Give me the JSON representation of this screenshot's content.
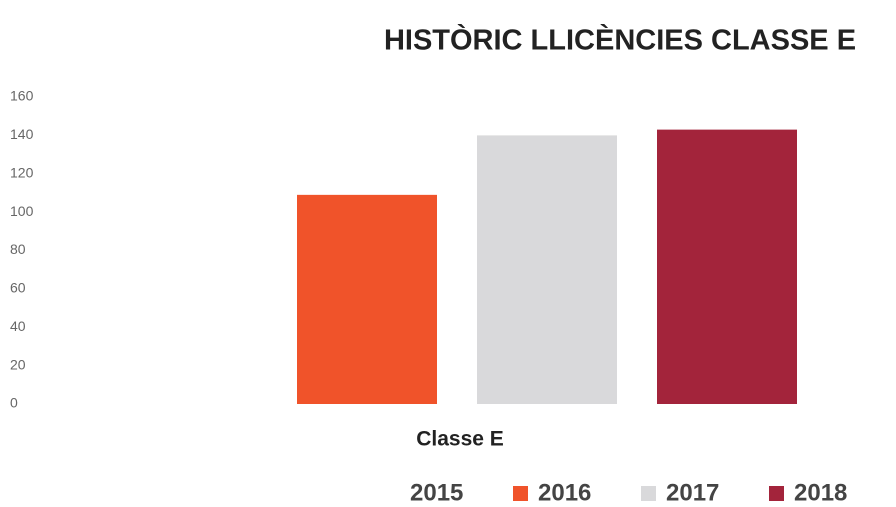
{
  "chart_data": {
    "type": "bar",
    "title": "HISTÒRIC LLICÈNCIES CLASSE E",
    "categories": [
      "Classe E"
    ],
    "series": [
      {
        "name": "2015",
        "values": [
          null
        ]
      },
      {
        "name": "2016",
        "color": "#f0532a",
        "values": [
          109
        ]
      },
      {
        "name": "2017",
        "color": "#d9d9db",
        "values": [
          140
        ]
      },
      {
        "name": "2018",
        "color": "#a3243b",
        "values": [
          143
        ]
      }
    ],
    "ylim": [
      0,
      160
    ],
    "yticks": [
      0,
      20,
      40,
      60,
      80,
      100,
      120,
      140,
      160
    ],
    "grid": false
  }
}
